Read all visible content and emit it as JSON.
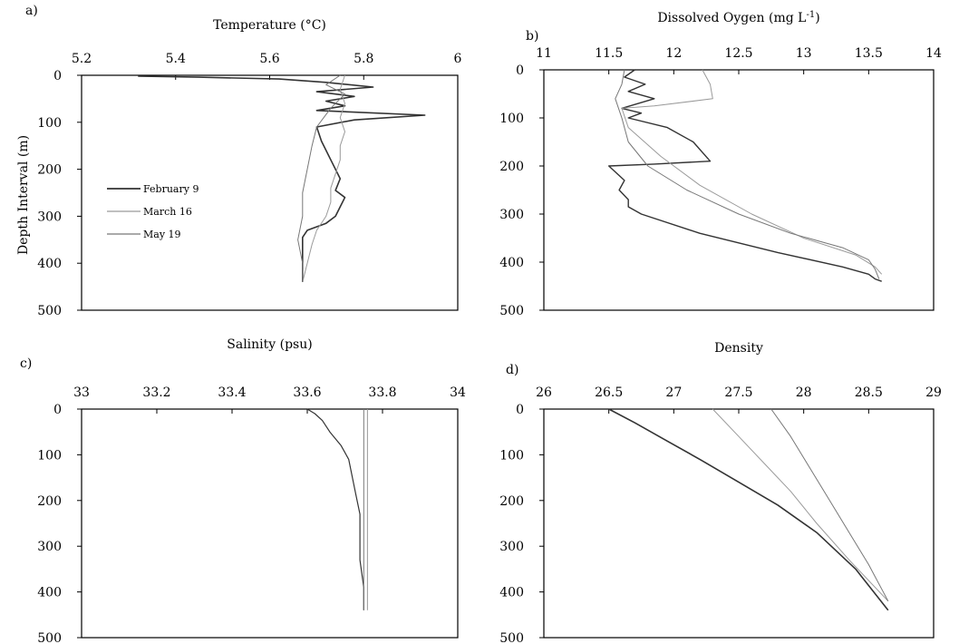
{
  "ylabel": "Depth Interval (m)",
  "legend": [
    {
      "name": "February 9",
      "color": "#333333"
    },
    {
      "name": "March 16",
      "color": "#9a9a9a"
    },
    {
      "name": "May 19",
      "color": "#777777"
    }
  ],
  "chart_data": [
    {
      "panel": "a)",
      "type": "line",
      "xlabel": "Temperature (°C)",
      "xlim": [
        5.2,
        6.0
      ],
      "xticks": [
        "5.2",
        "5.4",
        "5.6",
        "5.8",
        "6"
      ],
      "ylim": [
        0,
        500
      ],
      "yticks": [
        "0",
        "100",
        "200",
        "300",
        "400",
        "500"
      ],
      "x_axis_position": "top",
      "y_inverted": true,
      "series": [
        {
          "name": "February 9",
          "color": "#333333",
          "width": 1.6,
          "x": [
            5.32,
            5.45,
            5.62,
            5.72,
            5.82,
            5.7,
            5.78,
            5.72,
            5.76,
            5.7,
            5.93,
            5.78,
            5.7,
            5.71,
            5.73,
            5.75,
            5.74,
            5.76,
            5.75,
            5.74,
            5.72,
            5.68,
            5.67,
            5.67,
            5.67,
            5.67
          ],
          "y": [
            2,
            4,
            8,
            15,
            25,
            35,
            45,
            55,
            65,
            75,
            85,
            95,
            110,
            140,
            180,
            220,
            245,
            260,
            280,
            300,
            315,
            330,
            345,
            380,
            420,
            440
          ]
        },
        {
          "name": "March 16",
          "color": "#9a9a9a",
          "width": 1.0,
          "x": [
            5.76,
            5.75,
            5.76,
            5.75,
            5.76,
            5.75,
            5.75,
            5.74,
            5.73,
            5.73,
            5.72,
            5.7,
            5.69,
            5.68,
            5.67
          ],
          "y": [
            0,
            30,
            60,
            90,
            120,
            150,
            180,
            210,
            240,
            270,
            300,
            330,
            360,
            400,
            440
          ]
        },
        {
          "name": "May 19",
          "color": "#777777",
          "width": 1.0,
          "x": [
            5.75,
            5.72,
            5.76,
            5.73,
            5.7,
            5.69,
            5.68,
            5.67,
            5.67,
            5.66,
            5.67,
            5.67
          ],
          "y": [
            0,
            20,
            40,
            70,
            110,
            150,
            200,
            250,
            300,
            350,
            400,
            440
          ]
        }
      ]
    },
    {
      "panel": "b)",
      "type": "line",
      "xlabel": "Dissolved Oygen (mg L",
      "xlabel_sup": "-1",
      "xlabel_end": ")",
      "xlim": [
        11.0,
        14.0
      ],
      "xticks": [
        "11",
        "11.5",
        "12",
        "12.5",
        "13",
        "13.5",
        "14"
      ],
      "ylim": [
        0,
        500
      ],
      "yticks": [
        "0",
        "100",
        "200",
        "300",
        "400",
        "500"
      ],
      "x_axis_position": "top",
      "y_inverted": true,
      "series": [
        {
          "name": "February 9",
          "color": "#333333",
          "width": 1.4,
          "x": [
            11.7,
            11.62,
            11.78,
            11.65,
            11.85,
            11.6,
            11.75,
            11.65,
            11.95,
            12.15,
            12.28,
            11.85,
            11.5,
            11.62,
            11.58,
            11.65,
            11.65,
            11.75,
            12.2,
            12.8,
            13.3,
            13.5,
            13.55,
            13.6
          ],
          "y": [
            0,
            15,
            30,
            45,
            60,
            80,
            90,
            100,
            120,
            150,
            190,
            196,
            200,
            230,
            250,
            270,
            285,
            300,
            340,
            380,
            410,
            425,
            435,
            440
          ]
        },
        {
          "name": "March 16",
          "color": "#9a9a9a",
          "width": 1.0,
          "x": [
            12.22,
            12.28,
            12.3,
            11.85,
            11.6,
            11.65,
            11.9,
            12.2,
            12.6,
            13.0,
            13.4,
            13.55,
            13.6
          ],
          "y": [
            0,
            30,
            60,
            75,
            80,
            120,
            180,
            240,
            300,
            350,
            385,
            410,
            425
          ]
        },
        {
          "name": "May 19",
          "color": "#777777",
          "width": 1.0,
          "x": [
            11.62,
            11.6,
            11.55,
            11.6,
            11.65,
            11.8,
            12.1,
            12.5,
            12.9,
            13.3,
            13.5,
            13.55,
            13.58
          ],
          "y": [
            0,
            30,
            60,
            100,
            150,
            200,
            250,
            300,
            340,
            370,
            395,
            415,
            435
          ]
        }
      ]
    },
    {
      "panel": "c)",
      "type": "line",
      "xlabel": "Salinity (psu)",
      "xlim": [
        33.0,
        34.0
      ],
      "xticks": [
        "33",
        "33.2",
        "33.4",
        "33.6",
        "33.8",
        "34"
      ],
      "ylim": [
        0,
        500
      ],
      "yticks": [
        "0",
        "100",
        "200",
        "300",
        "400",
        "500"
      ],
      "x_axis_position": "top",
      "y_inverted": true,
      "series": [
        {
          "name": "February 9",
          "color": "#333333",
          "width": 1.2,
          "x": [
            33.6,
            33.62,
            33.64,
            33.66,
            33.69,
            33.71,
            33.72,
            33.73,
            33.74,
            33.74,
            33.74,
            33.75,
            33.75
          ],
          "y": [
            0,
            10,
            25,
            50,
            80,
            110,
            150,
            190,
            230,
            280,
            330,
            390,
            440
          ]
        },
        {
          "name": "March 16",
          "color": "#9a9a9a",
          "width": 1.0,
          "x": [
            33.76,
            33.76,
            33.76,
            33.76,
            33.76,
            33.76,
            33.76,
            33.76,
            33.76,
            33.76
          ],
          "y": [
            0,
            50,
            100,
            150,
            200,
            250,
            300,
            350,
            400,
            440
          ]
        },
        {
          "name": "May 19",
          "color": "#777777",
          "width": 1.0,
          "x": [
            33.75,
            33.75,
            33.75,
            33.75,
            33.75,
            33.75,
            33.75,
            33.75,
            33.75,
            33.75
          ],
          "y": [
            0,
            50,
            100,
            150,
            200,
            250,
            300,
            350,
            400,
            440
          ]
        }
      ]
    },
    {
      "panel": "d)",
      "type": "line",
      "xlabel": "Density",
      "xlim": [
        26.0,
        29.0
      ],
      "xticks": [
        "26",
        "26.5",
        "27",
        "27.5",
        "28",
        "28.5",
        "29"
      ],
      "ylim": [
        0,
        500
      ],
      "yticks": [
        "0",
        "100",
        "200",
        "300",
        "400",
        "500"
      ],
      "x_axis_position": "top",
      "y_inverted": true,
      "series": [
        {
          "name": "February 9",
          "color": "#333333",
          "width": 1.6,
          "x": [
            26.5,
            26.7,
            26.95,
            27.2,
            27.5,
            27.8,
            28.1,
            28.4,
            28.65
          ],
          "y": [
            0,
            30,
            70,
            110,
            160,
            210,
            270,
            350,
            440
          ]
        },
        {
          "name": "March 16",
          "color": "#9a9a9a",
          "width": 1.0,
          "x": [
            27.3,
            27.5,
            27.7,
            27.9,
            28.1,
            28.35,
            28.65
          ],
          "y": [
            0,
            60,
            120,
            180,
            250,
            330,
            420
          ]
        },
        {
          "name": "May 19",
          "color": "#777777",
          "width": 1.0,
          "x": [
            27.75,
            27.9,
            28.05,
            28.2,
            28.35,
            28.5,
            28.65
          ],
          "y": [
            0,
            60,
            130,
            200,
            270,
            340,
            420
          ]
        }
      ]
    }
  ]
}
